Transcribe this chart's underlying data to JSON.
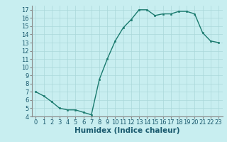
{
  "x": [
    0,
    1,
    2,
    3,
    4,
    5,
    6,
    7,
    8,
    9,
    10,
    11,
    12,
    13,
    14,
    15,
    16,
    17,
    18,
    19,
    20,
    21,
    22,
    23
  ],
  "y": [
    7.0,
    6.5,
    5.8,
    5.0,
    4.8,
    4.8,
    4.5,
    4.2,
    8.5,
    11.0,
    13.2,
    14.8,
    15.8,
    17.0,
    17.0,
    16.3,
    16.5,
    16.5,
    16.8,
    16.8,
    16.5,
    14.2,
    13.2,
    13.0
  ],
  "title": "",
  "xlabel": "Humidex (Indice chaleur)",
  "ylabel": "",
  "xlim": [
    -0.5,
    23.5
  ],
  "ylim": [
    4,
    17.5
  ],
  "yticks": [
    4,
    5,
    6,
    7,
    8,
    9,
    10,
    11,
    12,
    13,
    14,
    15,
    16,
    17
  ],
  "xticks": [
    0,
    1,
    2,
    3,
    4,
    5,
    6,
    7,
    8,
    9,
    10,
    11,
    12,
    13,
    14,
    15,
    16,
    17,
    18,
    19,
    20,
    21,
    22,
    23
  ],
  "line_color": "#1a7a6e",
  "marker_color": "#1a7a6e",
  "bg_color": "#c8eef0",
  "grid_color": "#aad8da",
  "tick_label_fontsize": 6.0,
  "xlabel_fontsize": 7.5,
  "marker_size": 2.0,
  "line_width": 1.0
}
